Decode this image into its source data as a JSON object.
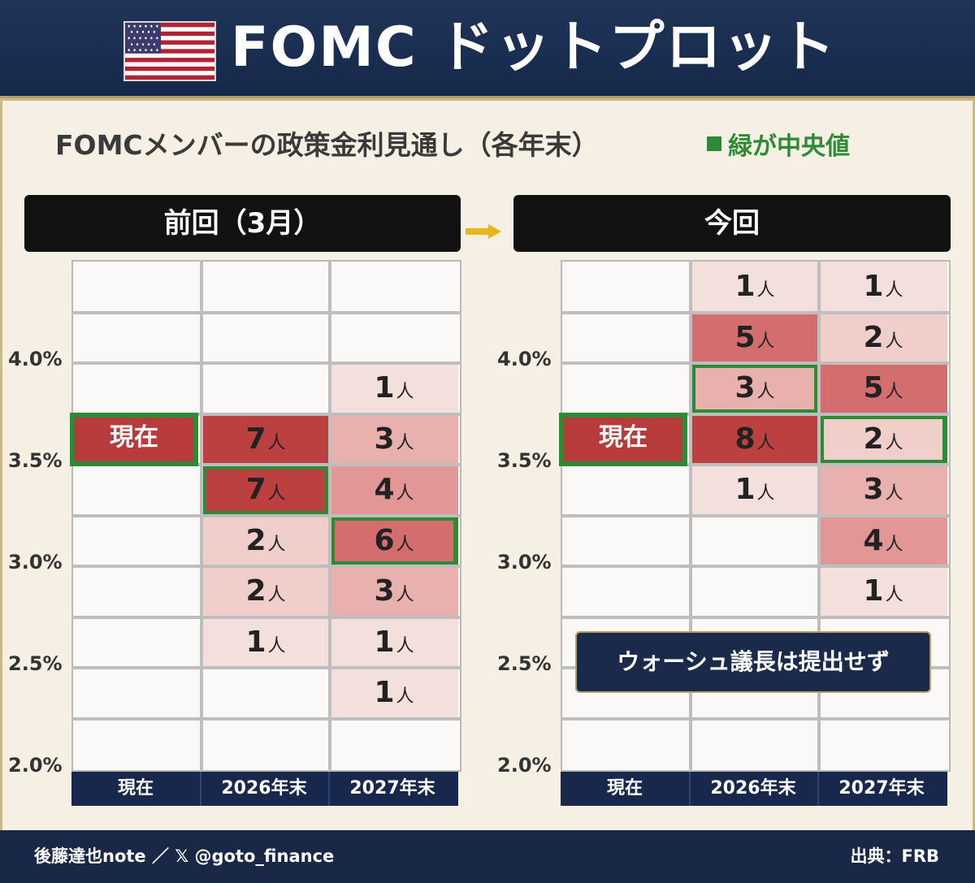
{
  "header": {
    "title": "FOMC ドットプロット"
  },
  "subtitle": "FOMCメンバーの政策金利見通し（各年末）",
  "legend": "緑が中央値",
  "colors": {
    "header_bg": "#1f3558",
    "median_border": "#2e8a35",
    "current_bg": "#b83b3b",
    "background": "#f5f0e3"
  },
  "chart_data": [
    {
      "type": "table",
      "title": "前回（3月）",
      "columns": [
        "現在",
        "2026年末",
        "2027年末"
      ],
      "ytick_labels": [
        "4.0%",
        "3.5%",
        "3.0%",
        "2.5%",
        "2.0%"
      ],
      "yrange": [
        2.0,
        4.5
      ],
      "current_label": "現在",
      "current_rate_range": [
        3.5,
        3.75
      ],
      "unit": "人",
      "cells": [
        {
          "col": 1,
          "range": [
            3.5,
            3.75
          ],
          "count": 7,
          "median": false
        },
        {
          "col": 1,
          "range": [
            3.25,
            3.5
          ],
          "count": 7,
          "median": true
        },
        {
          "col": 1,
          "range": [
            3.0,
            3.25
          ],
          "count": 2,
          "median": false
        },
        {
          "col": 1,
          "range": [
            2.75,
            3.0
          ],
          "count": 2,
          "median": false
        },
        {
          "col": 1,
          "range": [
            2.5,
            2.75
          ],
          "count": 1,
          "median": false
        },
        {
          "col": 2,
          "range": [
            3.75,
            4.0
          ],
          "count": 1,
          "median": false
        },
        {
          "col": 2,
          "range": [
            3.5,
            3.75
          ],
          "count": 3,
          "median": false
        },
        {
          "col": 2,
          "range": [
            3.25,
            3.5
          ],
          "count": 4,
          "median": false
        },
        {
          "col": 2,
          "range": [
            3.0,
            3.25
          ],
          "count": 6,
          "median": true
        },
        {
          "col": 2,
          "range": [
            2.75,
            3.0
          ],
          "count": 3,
          "median": false
        },
        {
          "col": 2,
          "range": [
            2.5,
            2.75
          ],
          "count": 1,
          "median": false
        },
        {
          "col": 2,
          "range": [
            2.25,
            2.5
          ],
          "count": 1,
          "median": false
        }
      ]
    },
    {
      "type": "table",
      "title": "今回",
      "columns": [
        "現在",
        "2026年末",
        "2027年末"
      ],
      "ytick_labels": [
        "4.0%",
        "3.5%",
        "3.0%",
        "2.5%",
        "2.0%"
      ],
      "yrange": [
        2.0,
        4.5
      ],
      "current_label": "現在",
      "current_rate_range": [
        3.5,
        3.75
      ],
      "unit": "人",
      "cells": [
        {
          "col": 1,
          "range": [
            4.25,
            4.5
          ],
          "count": 1,
          "median": false
        },
        {
          "col": 1,
          "range": [
            4.0,
            4.25
          ],
          "count": 5,
          "median": false
        },
        {
          "col": 1,
          "range": [
            3.75,
            4.0
          ],
          "count": 3,
          "median": true
        },
        {
          "col": 1,
          "range": [
            3.5,
            3.75
          ],
          "count": 8,
          "median": false
        },
        {
          "col": 1,
          "range": [
            3.25,
            3.5
          ],
          "count": 1,
          "median": false
        },
        {
          "col": 2,
          "range": [
            4.25,
            4.5
          ],
          "count": 1,
          "median": false
        },
        {
          "col": 2,
          "range": [
            4.0,
            4.25
          ],
          "count": 2,
          "median": false
        },
        {
          "col": 2,
          "range": [
            3.75,
            4.0
          ],
          "count": 5,
          "median": false
        },
        {
          "col": 2,
          "range": [
            3.5,
            3.75
          ],
          "count": 2,
          "median": true
        },
        {
          "col": 2,
          "range": [
            3.25,
            3.5
          ],
          "count": 3,
          "median": false
        },
        {
          "col": 2,
          "range": [
            3.0,
            3.25
          ],
          "count": 4,
          "median": false
        },
        {
          "col": 2,
          "range": [
            2.75,
            3.0
          ],
          "count": 1,
          "median": false
        }
      ],
      "note": "ウォーシュ議長は提出せず"
    }
  ],
  "footer": {
    "left": "後藤達也note ／ 𝕏 @goto_finance",
    "right": "出典：FRB"
  }
}
